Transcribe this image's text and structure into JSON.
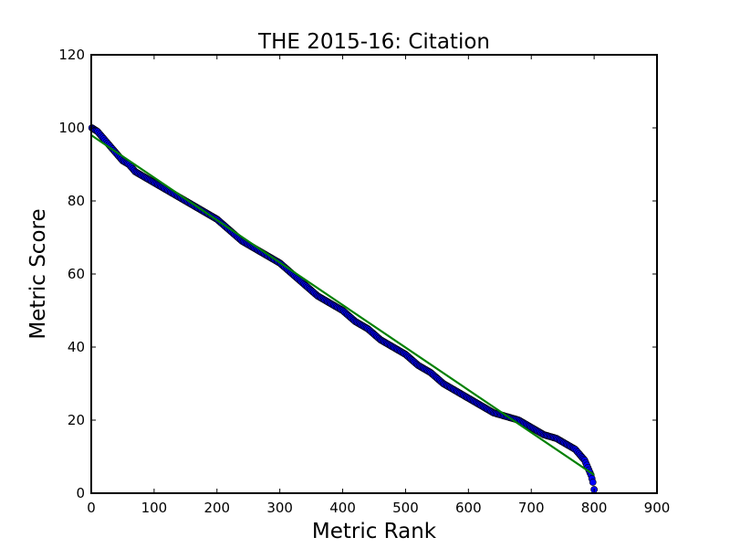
{
  "chart_data": {
    "type": "scatter",
    "title": "THE 2015-16: Citation",
    "xlabel": "Metric Rank",
    "ylabel": "Metric Score",
    "xlim": [
      0,
      900
    ],
    "ylim": [
      0,
      120
    ],
    "xticks": [
      0,
      100,
      200,
      300,
      400,
      500,
      600,
      700,
      800,
      900
    ],
    "yticks": [
      0,
      20,
      40,
      60,
      80,
      100,
      120
    ],
    "grid": false,
    "legend": "none",
    "series": [
      {
        "kind": "scatter",
        "color": "#0000ff",
        "edge_color": "#000000",
        "x": [
          1,
          10,
          20,
          30,
          40,
          50,
          60,
          70,
          80,
          100,
          120,
          140,
          160,
          180,
          200,
          220,
          240,
          260,
          280,
          300,
          320,
          340,
          360,
          380,
          400,
          420,
          440,
          460,
          480,
          500,
          520,
          540,
          560,
          580,
          600,
          620,
          640,
          660,
          680,
          700,
          720,
          740,
          760,
          770,
          780,
          785,
          790,
          795,
          798,
          800
        ],
        "y": [
          100,
          99,
          97,
          95,
          93,
          91,
          90,
          88,
          87,
          85,
          83,
          81,
          79,
          77,
          75,
          72,
          69,
          67,
          65,
          63,
          60,
          57,
          54,
          52,
          50,
          47,
          45,
          42,
          40,
          38,
          35,
          33,
          30,
          28,
          26,
          24,
          22,
          21,
          20,
          18,
          16,
          15,
          13,
          12,
          10,
          9,
          7,
          5,
          3,
          1
        ]
      },
      {
        "kind": "line",
        "color": "#008000",
        "x": [
          0,
          800
        ],
        "y": [
          98,
          5
        ]
      }
    ]
  }
}
